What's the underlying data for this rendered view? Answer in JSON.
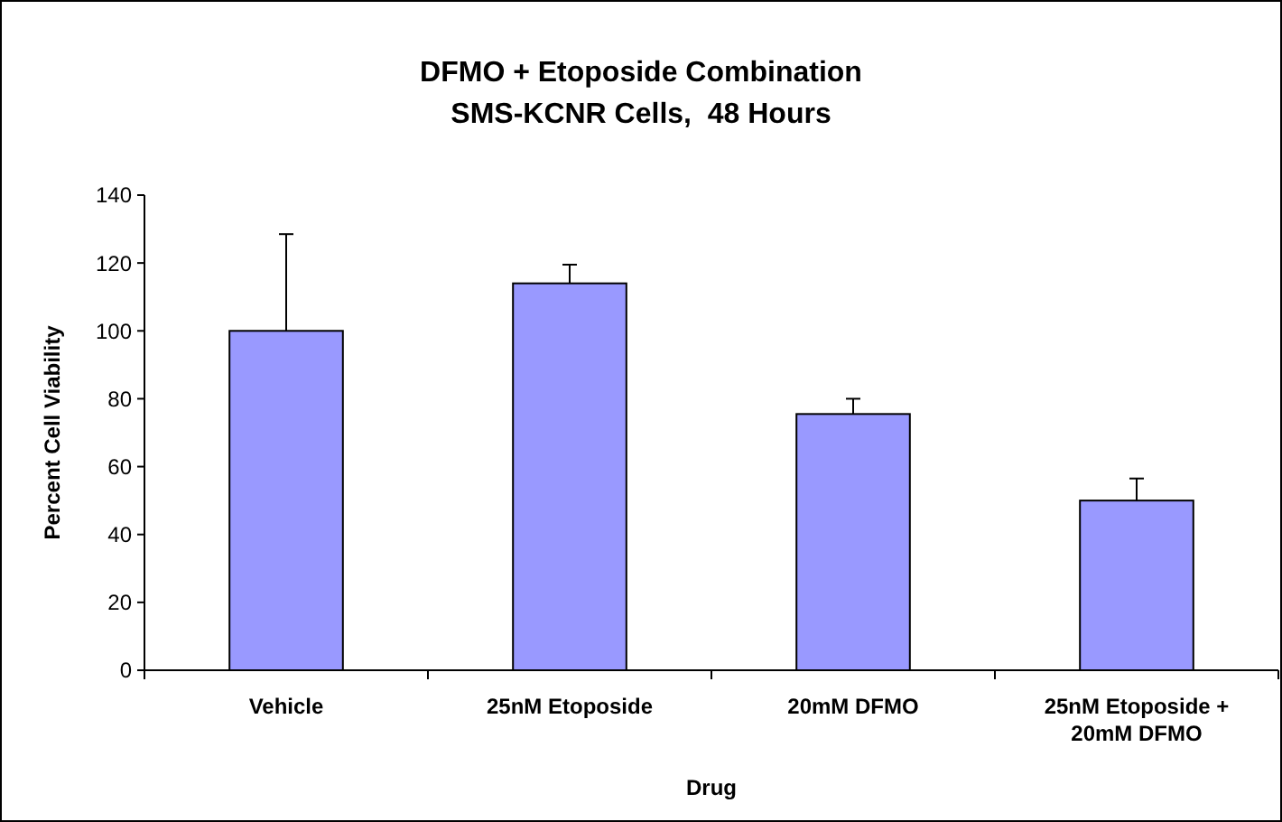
{
  "chart_data": {
    "type": "bar",
    "title": "DFMO + Etoposide Combination",
    "subtitle": "SMS-KCNR Cells,  48 Hours",
    "xlabel": "Drug",
    "ylabel": "Percent Cell Viability",
    "categories": [
      "Vehicle",
      "25nM Etoposide",
      "20mM DFMO",
      "25nM Etoposide + 20mM DFMO"
    ],
    "values": [
      100,
      114,
      75.5,
      50
    ],
    "errors": [
      [
        100,
        128.5
      ],
      [
        114,
        119.5
      ],
      [
        75.5,
        80
      ],
      [
        50,
        56.5
      ]
    ],
    "color": "#9999ff",
    "ylim": [
      0,
      140
    ],
    "yticks": [
      0,
      20,
      40,
      60,
      80,
      100,
      120,
      140
    ],
    "grid": false
  }
}
